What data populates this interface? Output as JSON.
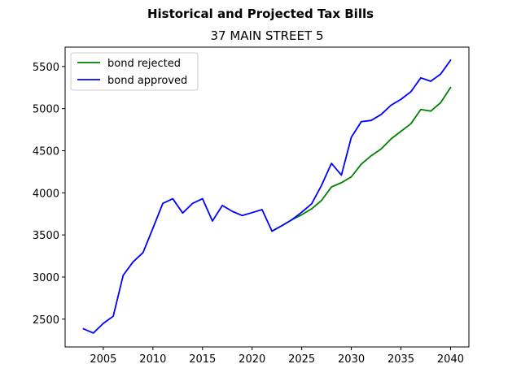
{
  "chart_data": {
    "type": "line",
    "suptitle": "Historical and Projected Tax Bills",
    "title": "37 MAIN STREET  5",
    "xlabel": "",
    "ylabel": "",
    "xlim": [
      2001.15,
      2041.85
    ],
    "ylim": [
      2170,
      5730
    ],
    "xticks": [
      2005,
      2010,
      2015,
      2020,
      2025,
      2030,
      2035,
      2040
    ],
    "yticks": [
      2500,
      3000,
      3500,
      4000,
      4500,
      5000,
      5500
    ],
    "grid": false,
    "legend_position": "upper left",
    "series": [
      {
        "name": "bond rejected",
        "color": "#008000",
        "x": [
          2022,
          2023,
          2024,
          2025,
          2026,
          2027,
          2028,
          2029,
          2030,
          2031,
          2032,
          2033,
          2034,
          2035,
          2036,
          2037,
          2038,
          2039,
          2040
        ],
        "values": [
          3545,
          3610,
          3680,
          3740,
          3810,
          3910,
          4070,
          4120,
          4190,
          4340,
          4440,
          4520,
          4640,
          4730,
          4820,
          4990,
          4970,
          5070,
          5250
        ]
      },
      {
        "name": "bond approved",
        "color": "#0000ff",
        "x": [
          2003,
          2004,
          2005,
          2006,
          2007,
          2008,
          2009,
          2010,
          2011,
          2012,
          2013,
          2014,
          2015,
          2016,
          2017,
          2018,
          2019,
          2020,
          2021,
          2022,
          2023,
          2024,
          2025,
          2026,
          2027,
          2028,
          2029,
          2030,
          2031,
          2032,
          2033,
          2034,
          2035,
          2036,
          2037,
          2038,
          2039,
          2040
        ],
        "values": [
          2385,
          2335,
          2450,
          2535,
          3020,
          3180,
          3290,
          3580,
          3875,
          3930,
          3760,
          3875,
          3930,
          3665,
          3850,
          3780,
          3730,
          3765,
          3800,
          3545,
          3610,
          3680,
          3770,
          3870,
          4090,
          4350,
          4210,
          4660,
          4845,
          4860,
          4930,
          5040,
          5110,
          5200,
          5365,
          5325,
          5410,
          5575
        ]
      }
    ]
  }
}
